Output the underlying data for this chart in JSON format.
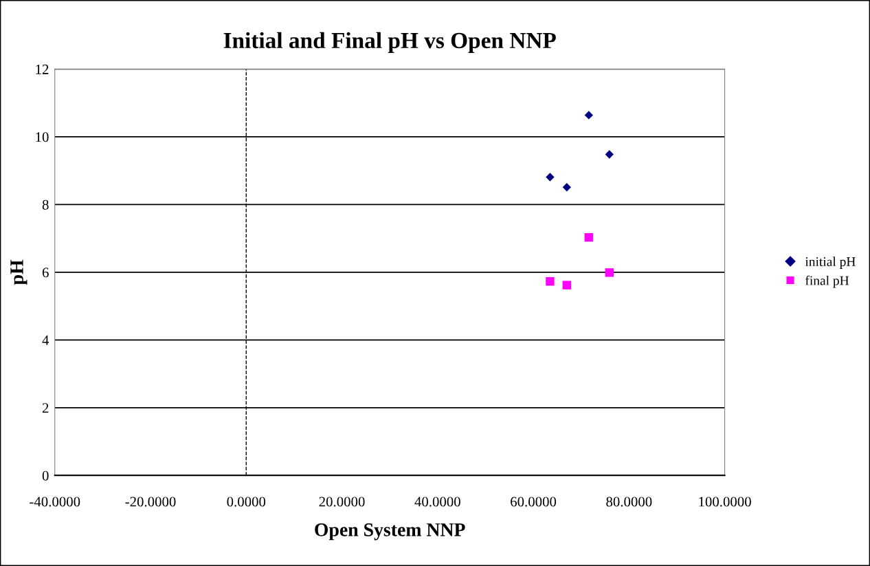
{
  "chart_data": {
    "type": "scatter",
    "title": "Initial and Final pH vs Open NNP",
    "xlabel": "Open System NNP",
    "ylabel": "pH",
    "x": [
      63.5,
      67.0,
      71.6,
      75.9
    ],
    "series": [
      {
        "name": "initial pH",
        "color": "#000080",
        "marker": "diamond",
        "values": [
          8.81,
          8.51,
          10.64,
          9.48
        ]
      },
      {
        "name": "final pH",
        "color": "#ff00ff",
        "marker": "square",
        "values": [
          5.73,
          5.62,
          7.03,
          5.99
        ]
      }
    ],
    "xlim": [
      -40,
      100
    ],
    "xticks": [
      {
        "value": -40,
        "label": "-40.0000"
      },
      {
        "value": -20,
        "label": "-20.0000"
      },
      {
        "value": 0,
        "label": "0.0000"
      },
      {
        "value": 20,
        "label": "20.0000"
      },
      {
        "value": 40,
        "label": "40.0000"
      },
      {
        "value": 60,
        "label": "60.0000"
      },
      {
        "value": 80,
        "label": "80.0000"
      },
      {
        "value": 100,
        "label": "100.0000"
      }
    ],
    "ylim": [
      0,
      12
    ],
    "yticks": [
      0,
      2,
      4,
      6,
      8,
      10,
      12
    ],
    "ref_lines": [
      {
        "axis": "x",
        "value": 0,
        "line_style": "dashed",
        "color": "#000000"
      }
    ],
    "grid": "y",
    "legend": "right"
  }
}
